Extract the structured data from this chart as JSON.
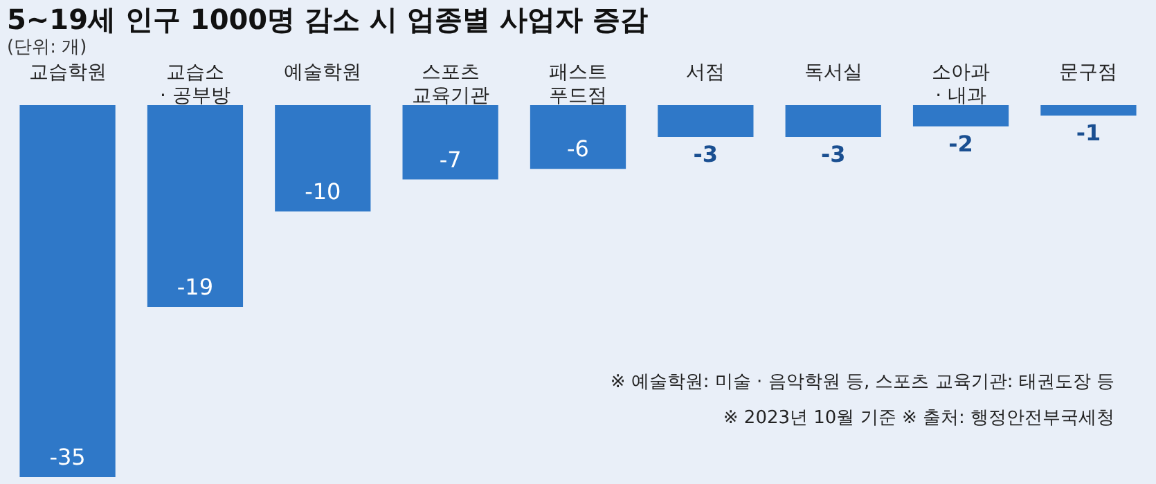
{
  "chart_data": {
    "type": "bar",
    "title": "5~19세 인구 1000명 감소 시 업종별 사업자 증감",
    "subtitle": "(단위: 개)",
    "categories": [
      "교습학원",
      "교습소\n· 공부방",
      "예술학원",
      "스포츠\n교육기관",
      "패스트\n푸드점",
      "서점",
      "독서실",
      "소아과\n· 내과",
      "문구점"
    ],
    "values": [
      -35,
      -19,
      -10,
      -7,
      -6,
      -3,
      -3,
      -2,
      -1
    ],
    "color": "#2f78c8",
    "data_labels": true,
    "grid": false,
    "annotations": [
      "※ 예술학원: 미술 · 음악학원 등, 스포츠 교육기관: 태권도장 등",
      "※ 2023년 10월 기준   ※ 출처: 행정안전부국세청"
    ]
  }
}
